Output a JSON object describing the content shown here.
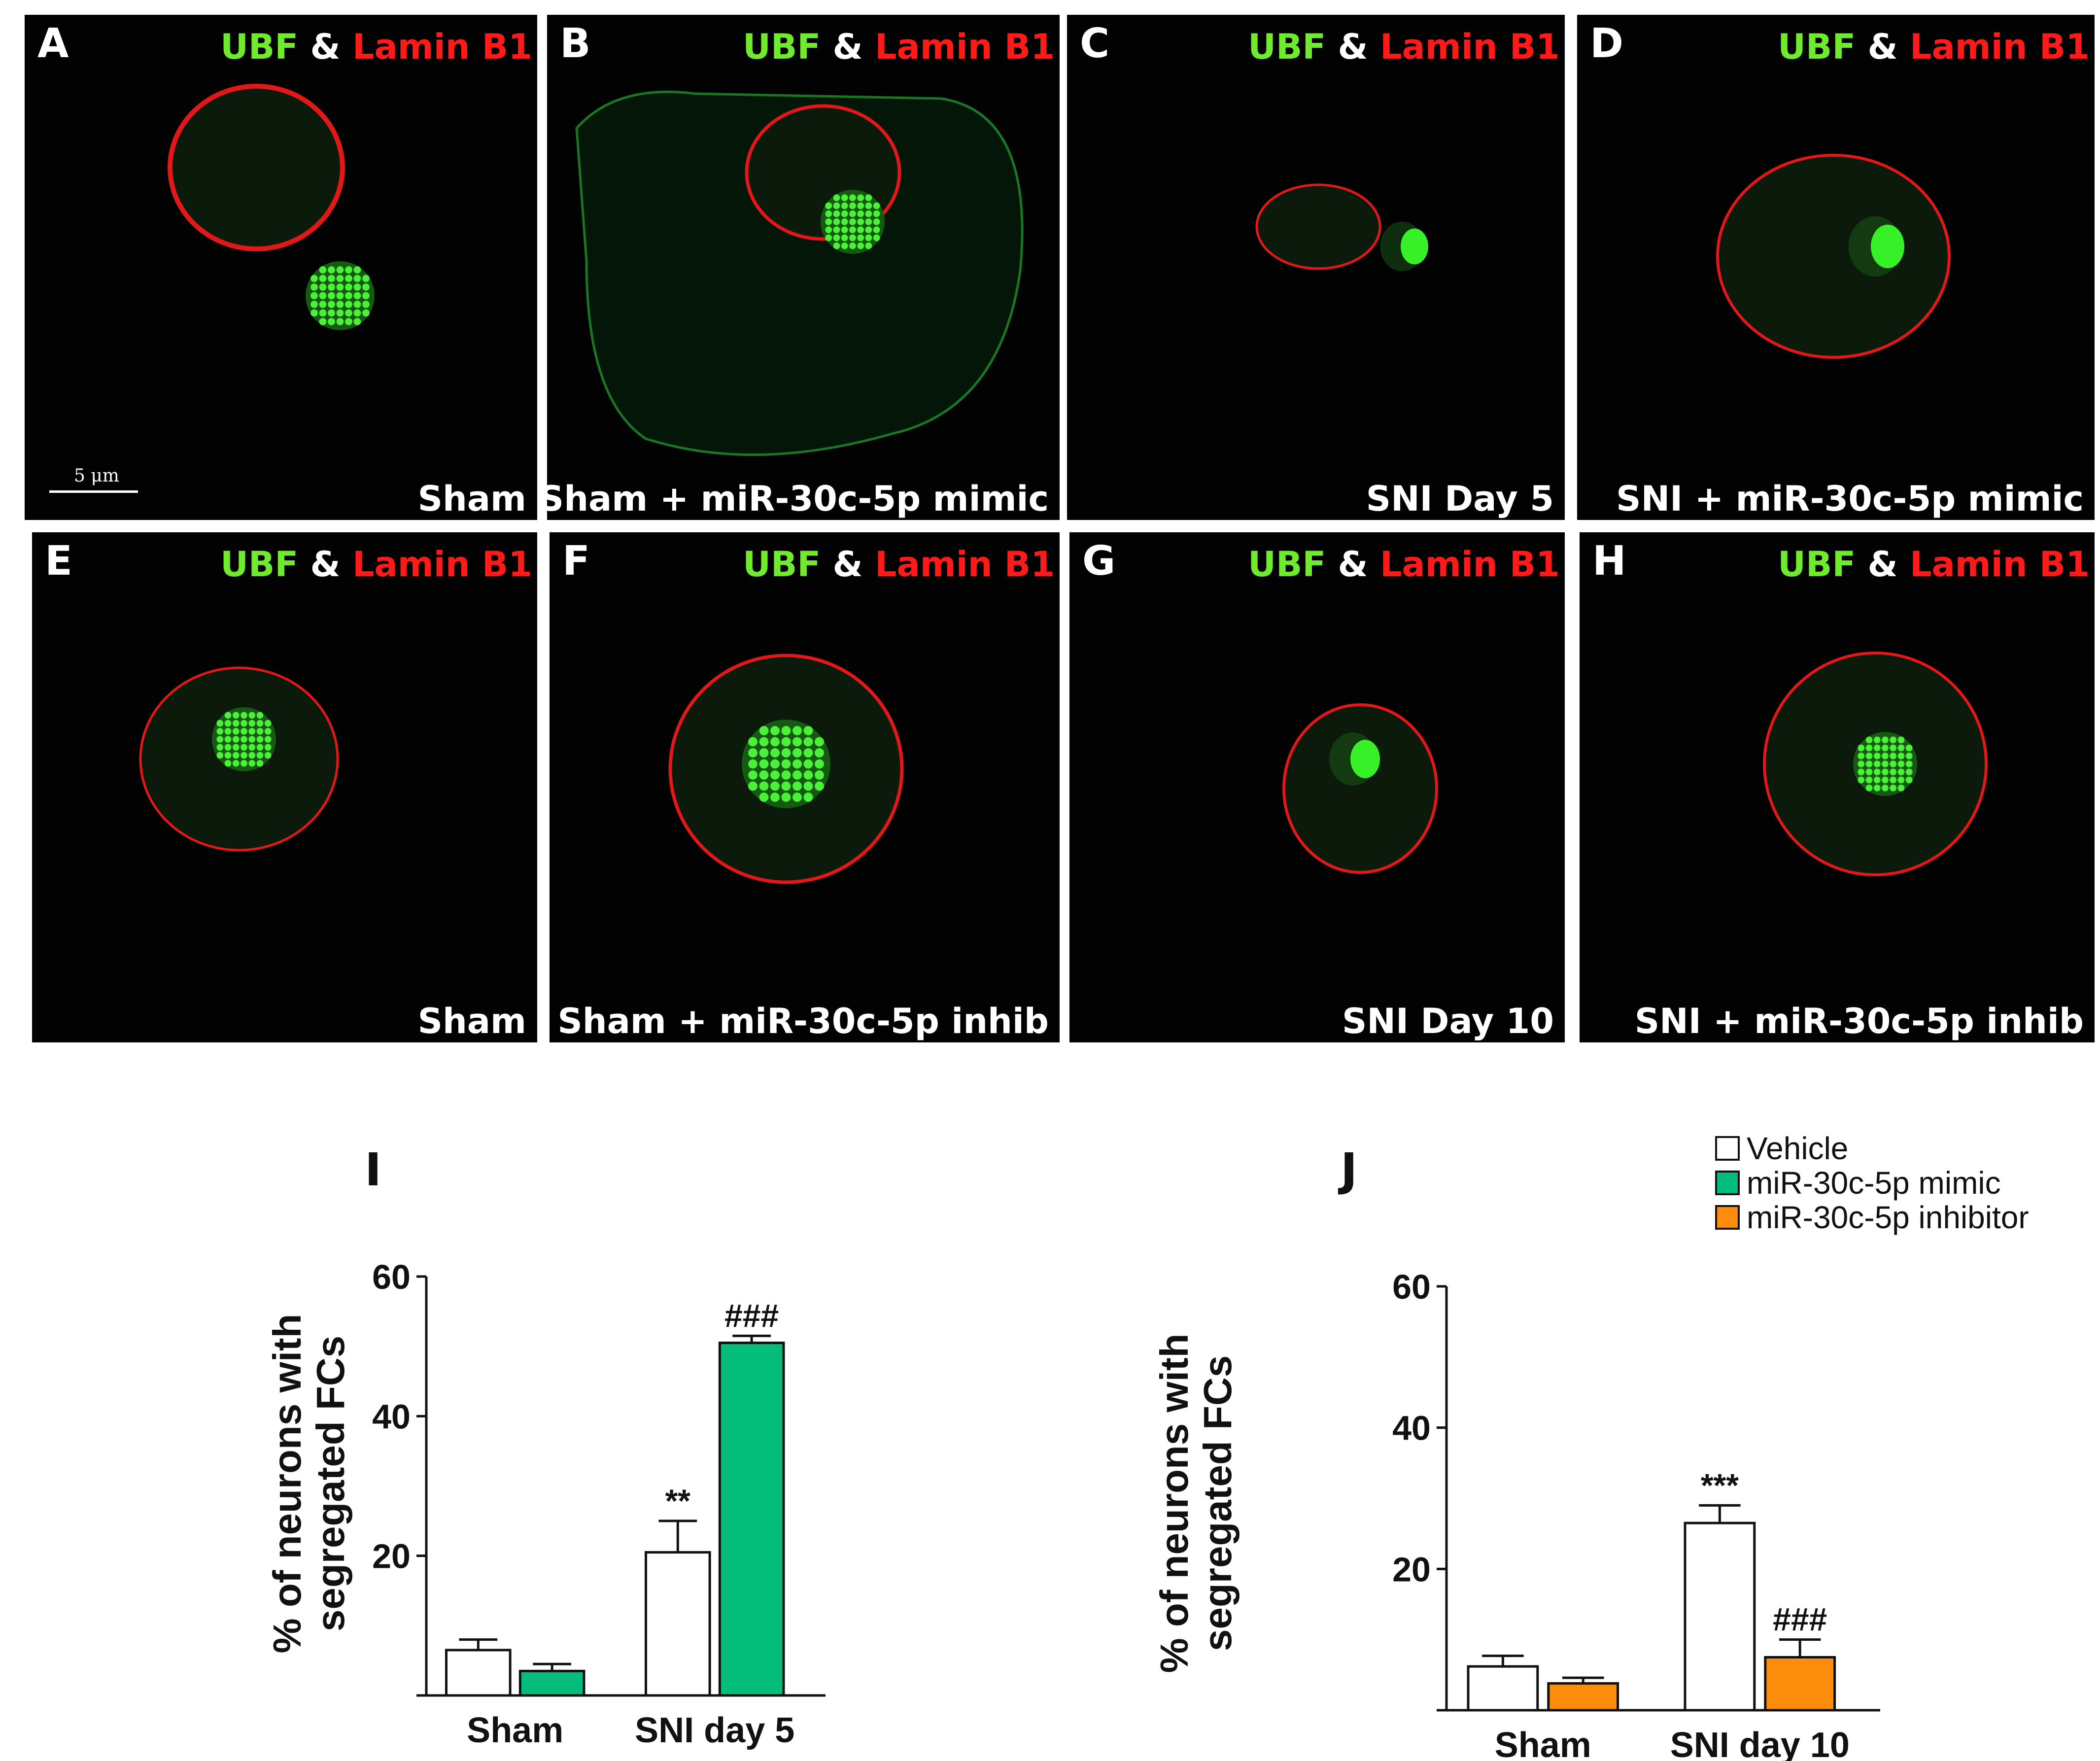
{
  "panels": [
    {
      "label": "A",
      "condition": "Sham"
    },
    {
      "label": "B",
      "condition": "Sham + miR-30c-5p mimic"
    },
    {
      "label": "C",
      "condition": "SNI Day 5"
    },
    {
      "label": "D",
      "condition": "SNI + miR-30c-5p mimic"
    },
    {
      "label": "E",
      "condition": "Sham"
    },
    {
      "label": "F",
      "condition": "Sham + miR-30c-5p inhib"
    },
    {
      "label": "G",
      "condition": "SNI Day 10"
    },
    {
      "label": "H",
      "condition": "SNI + miR-30c-5p inhib"
    }
  ],
  "stain": {
    "green": "UBF",
    "amp": "&",
    "red": "Lamin B1"
  },
  "scale_bar": "5 μm",
  "colors": {
    "green_stain": "#6fea2e",
    "red_stain": "#ff1a1a",
    "vehicle": "#ffffff",
    "mimic": "#05bd7a",
    "inhibitor": "#fc8c0c"
  },
  "legend": {
    "items": [
      {
        "label": "Vehicle",
        "color": "#ffffff"
      },
      {
        "label": "miR-30c-5p mimic",
        "color": "#05bd7a"
      },
      {
        "label": "miR-30c-5p inhibitor",
        "color": "#fc8c0c"
      }
    ]
  },
  "chart_data": [
    {
      "panel": "I",
      "type": "bar",
      "ylabel": "% of neurons with segregated FCs",
      "ylim": [
        0,
        60
      ],
      "yticks": [
        20,
        40,
        60
      ],
      "categories": [
        "Sham",
        "SNI day 5"
      ],
      "series": [
        {
          "name": "Vehicle",
          "values": [
            6.5,
            20.5
          ],
          "errors": [
            1.5,
            4.5
          ],
          "annotations": [
            "",
            "**"
          ]
        },
        {
          "name": "miR-30c-5p mimic",
          "values": [
            3.5,
            50.5
          ],
          "errors": [
            1.0,
            1.0
          ],
          "annotations": [
            "",
            "###"
          ]
        }
      ]
    },
    {
      "panel": "J",
      "type": "bar",
      "ylabel": "% of neurons with segregated FCs",
      "ylim": [
        0,
        60
      ],
      "yticks": [
        20,
        40,
        60
      ],
      "categories": [
        "Sham",
        "SNI day 10"
      ],
      "series": [
        {
          "name": "Vehicle",
          "values": [
            6.2,
            26.5
          ],
          "errors": [
            1.5,
            2.5
          ],
          "annotations": [
            "",
            "***"
          ]
        },
        {
          "name": "miR-30c-5p inhibitor",
          "values": [
            3.8,
            7.5
          ],
          "errors": [
            0.8,
            2.5
          ],
          "annotations": [
            "",
            "###"
          ]
        }
      ]
    }
  ]
}
